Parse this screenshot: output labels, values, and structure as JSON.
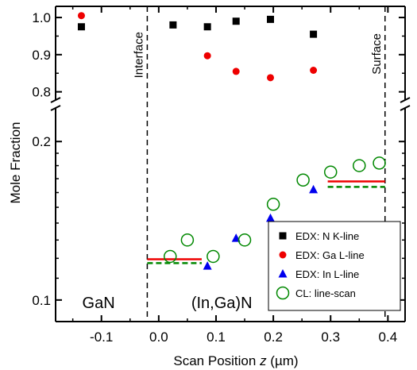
{
  "chart_data": {
    "type": "scatter",
    "x_axis": {
      "label_prefix": "Scan Position ",
      "label_var": "z",
      "label_unit": " (µm)",
      "range": [
        -0.18,
        0.43
      ],
      "ticks": [
        -0.1,
        0.0,
        0.1,
        0.2,
        0.3,
        0.4
      ],
      "tick_labels": [
        "-0.1",
        "0.0",
        "0.1",
        "0.2",
        "0.3",
        "0.4"
      ]
    },
    "y_axis": {
      "label": "Mole Fraction",
      "scale": "broken",
      "upper_panel": {
        "scale": "linear",
        "range": [
          0.78,
          1.03
        ],
        "ticks": [
          0.8,
          0.9,
          1.0
        ],
        "tick_labels": [
          "0.8",
          "0.9",
          "1.0"
        ]
      },
      "lower_panel": {
        "scale": "log",
        "range": [
          0.091,
          0.23
        ],
        "ticks": [
          0.1,
          0.2
        ],
        "tick_labels": [
          "0.1",
          "0.2"
        ]
      }
    },
    "vertical_lines": [
      {
        "x": -0.02,
        "label": "Interface",
        "style": "dashed"
      },
      {
        "x": 0.395,
        "label": "Surface",
        "style": "dashed"
      }
    ],
    "region_labels": [
      {
        "text": "GaN",
        "x": -0.105
      },
      {
        "text": "(In,Ga)N",
        "x": 0.11
      }
    ],
    "series": [
      {
        "name": "EDX:  N K-line",
        "marker": "square",
        "color": "#000000",
        "panel": "upper",
        "points": [
          [
            -0.135,
            0.975
          ],
          [
            0.025,
            0.98
          ],
          [
            0.085,
            0.975
          ],
          [
            0.135,
            0.99
          ],
          [
            0.195,
            0.995
          ],
          [
            0.27,
            0.955
          ]
        ]
      },
      {
        "name": "EDX: Ga L-line",
        "marker": "circle",
        "color": "#ee0000",
        "panel": "upper",
        "points": [
          [
            -0.135,
            1.005
          ],
          [
            0.085,
            0.897
          ],
          [
            0.135,
            0.855
          ],
          [
            0.195,
            0.838
          ],
          [
            0.27,
            0.858
          ]
        ]
      },
      {
        "name": "EDX:  In L-line",
        "marker": "triangle",
        "color": "#0000ee",
        "panel": "lower",
        "points": [
          [
            0.085,
            0.116
          ],
          [
            0.135,
            0.131
          ],
          [
            0.195,
            0.143
          ],
          [
            0.27,
            0.162
          ]
        ]
      },
      {
        "name": "CL:   line-scan",
        "marker": "open-circle",
        "color": "#008800",
        "panel": "lower",
        "points": [
          [
            0.02,
            0.121
          ],
          [
            0.05,
            0.13
          ],
          [
            0.095,
            0.121
          ],
          [
            0.15,
            0.13
          ],
          [
            0.2,
            0.152
          ],
          [
            0.252,
            0.169
          ],
          [
            0.3,
            0.175
          ],
          [
            0.35,
            0.18
          ],
          [
            0.385,
            0.182
          ]
        ]
      }
    ],
    "reference_lines": [
      {
        "color": "#ee0000",
        "style": "solid",
        "x": [
          -0.02,
          0.075
        ],
        "y": 0.1195
      },
      {
        "color": "#008800",
        "style": "dashed",
        "x": [
          -0.02,
          0.075
        ],
        "y": 0.1175
      },
      {
        "color": "#ee0000",
        "style": "solid",
        "x": [
          0.295,
          0.395
        ],
        "y": 0.168
      },
      {
        "color": "#008800",
        "style": "dashed",
        "x": [
          0.295,
          0.395
        ],
        "y": 0.164
      }
    ],
    "legend": {
      "position": "bottom-right"
    },
    "grid": false
  }
}
